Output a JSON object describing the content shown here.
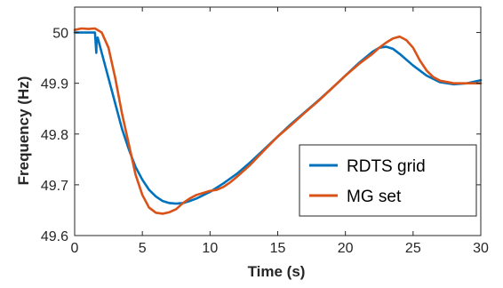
{
  "chart_data": {
    "type": "line",
    "xlabel": "Time (s)",
    "ylabel": "Frequency (Hz)",
    "xlim": [
      0,
      30
    ],
    "ylim": [
      49.6,
      50.05
    ],
    "xticks": [
      0,
      5,
      10,
      15,
      20,
      25,
      30
    ],
    "yticks": [
      49.6,
      49.7,
      49.8,
      49.9,
      50.0
    ],
    "x_tick_labels": [
      "0",
      "5",
      "10",
      "15",
      "20",
      "25",
      "30"
    ],
    "y_tick_labels": [
      "49.6",
      "49.7",
      "49.8",
      "49.9",
      "50"
    ],
    "grid": false,
    "legend_position": "bottom-right",
    "series": [
      {
        "name": "RDTS grid",
        "color": "#0072BD",
        "points": [
          [
            0,
            50.0
          ],
          [
            1.0,
            50.0
          ],
          [
            1.5,
            50.0
          ],
          [
            1.6,
            49.96
          ],
          [
            1.62,
            49.985
          ],
          [
            1.7,
            49.99
          ],
          [
            2.0,
            49.96
          ],
          [
            2.5,
            49.91
          ],
          [
            3.0,
            49.86
          ],
          [
            3.5,
            49.81
          ],
          [
            4.0,
            49.77
          ],
          [
            4.5,
            49.735
          ],
          [
            5.0,
            49.71
          ],
          [
            5.5,
            49.69
          ],
          [
            6.0,
            49.677
          ],
          [
            6.5,
            49.668
          ],
          [
            7.0,
            49.664
          ],
          [
            7.5,
            49.663
          ],
          [
            8.0,
            49.664
          ],
          [
            8.5,
            49.668
          ],
          [
            9.0,
            49.673
          ],
          [
            10.0,
            49.686
          ],
          [
            11.0,
            49.703
          ],
          [
            12.0,
            49.722
          ],
          [
            13.0,
            49.745
          ],
          [
            14.0,
            49.77
          ],
          [
            15.0,
            49.795
          ],
          [
            16.0,
            49.82
          ],
          [
            17.0,
            49.843
          ],
          [
            18.0,
            49.866
          ],
          [
            19.0,
            49.89
          ],
          [
            20.0,
            49.915
          ],
          [
            21.0,
            49.94
          ],
          [
            22.0,
            49.962
          ],
          [
            22.5,
            49.97
          ],
          [
            23.0,
            49.972
          ],
          [
            23.5,
            49.968
          ],
          [
            24.0,
            49.958
          ],
          [
            25.0,
            49.935
          ],
          [
            26.0,
            49.915
          ],
          [
            27.0,
            49.902
          ],
          [
            28.0,
            49.898
          ],
          [
            29.0,
            49.9
          ],
          [
            30.0,
            49.906
          ]
        ]
      },
      {
        "name": "MG set",
        "color": "#D95319",
        "points": [
          [
            0,
            50.005
          ],
          [
            0.5,
            50.008
          ],
          [
            1.0,
            50.007
          ],
          [
            1.5,
            50.008
          ],
          [
            2.0,
            50.0
          ],
          [
            2.5,
            49.97
          ],
          [
            3.0,
            49.91
          ],
          [
            3.5,
            49.84
          ],
          [
            4.0,
            49.78
          ],
          [
            4.5,
            49.72
          ],
          [
            5.0,
            49.68
          ],
          [
            5.5,
            49.655
          ],
          [
            6.0,
            49.645
          ],
          [
            6.5,
            49.643
          ],
          [
            7.0,
            49.646
          ],
          [
            7.5,
            49.652
          ],
          [
            8.0,
            49.664
          ],
          [
            8.5,
            49.673
          ],
          [
            9.0,
            49.68
          ],
          [
            10.0,
            49.688
          ],
          [
            10.5,
            49.69
          ],
          [
            11.0,
            49.696
          ],
          [
            11.5,
            49.705
          ],
          [
            12.0,
            49.716
          ],
          [
            13.0,
            49.74
          ],
          [
            14.0,
            49.768
          ],
          [
            15.0,
            49.795
          ],
          [
            16.0,
            49.818
          ],
          [
            17.0,
            49.842
          ],
          [
            18.0,
            49.865
          ],
          [
            19.0,
            49.89
          ],
          [
            20.0,
            49.915
          ],
          [
            21.0,
            49.938
          ],
          [
            22.0,
            49.958
          ],
          [
            22.5,
            49.97
          ],
          [
            23.0,
            49.98
          ],
          [
            23.5,
            49.988
          ],
          [
            24.0,
            49.992
          ],
          [
            24.5,
            49.985
          ],
          [
            25.0,
            49.97
          ],
          [
            25.5,
            49.945
          ],
          [
            26.0,
            49.925
          ],
          [
            26.5,
            49.912
          ],
          [
            27.0,
            49.905
          ],
          [
            28.0,
            49.9
          ],
          [
            29.0,
            49.9
          ],
          [
            30.0,
            49.9
          ]
        ]
      }
    ]
  }
}
